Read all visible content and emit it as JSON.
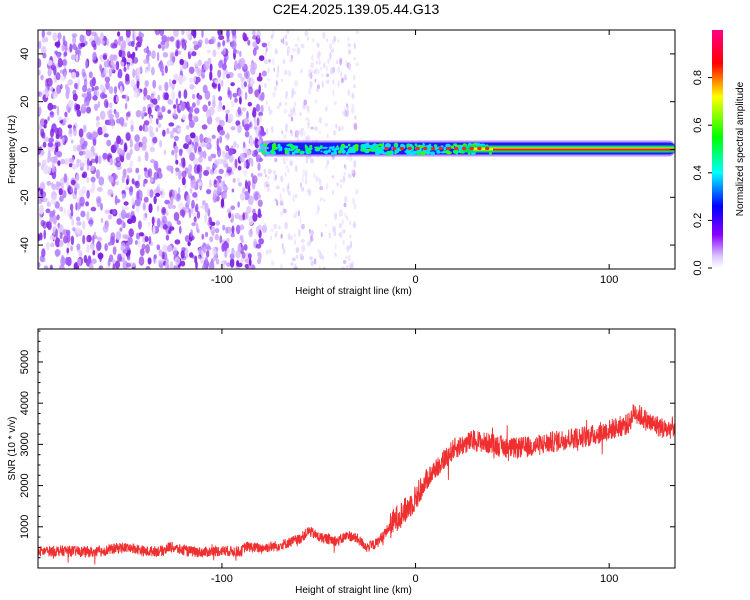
{
  "title": "C2E4.2025.139.05.44.G13",
  "chart_data": [
    {
      "type": "heatmap",
      "xlabel": "Height of straight line (km)",
      "ylabel": "Frequency (Hz)",
      "xlim": [
        -195,
        134
      ],
      "ylim": [
        -50,
        50
      ],
      "xticks": [
        -100,
        0,
        100
      ],
      "yticks": [
        -40,
        -20,
        0,
        20,
        40
      ],
      "colorbar": {
        "label": "Normalized spectral amplitude",
        "range": [
          0.0,
          1.0
        ],
        "ticks": [
          0.0,
          0.2,
          0.4,
          0.6,
          0.8
        ],
        "tick_labels": [
          "0.0",
          "0.2",
          "0.4",
          "0.6",
          "0.8"
        ],
        "colors": [
          "#ffffff",
          "#8800ff",
          "#0000ff",
          "#00ffff",
          "#00ff00",
          "#ffff00",
          "#ff0000",
          "#ff0088"
        ]
      },
      "features": {
        "noise_region_x": [
          -195,
          -78
        ],
        "sparse_noise_x": [
          -78,
          -30
        ],
        "signal_start_x": -80,
        "signal_frequency": 0,
        "bright_trace_from_x": 40
      }
    },
    {
      "type": "line",
      "xlabel": "Height of straight line (km)",
      "ylabel": "SNR (10 * v/v)",
      "xlim": [
        -195,
        134
      ],
      "ylim": [
        0,
        5800
      ],
      "xticks": [
        -100,
        0,
        100
      ],
      "yticks": [
        1000,
        2000,
        3000,
        4000,
        5000
      ],
      "color": "#f03030",
      "x": [
        -195,
        -180,
        -165,
        -152,
        -145,
        -140,
        -130,
        -127,
        -120,
        -110,
        -100,
        -90,
        -88,
        -80,
        -70,
        -60,
        -55,
        -50,
        -40,
        -35,
        -30,
        -25,
        -20,
        -15,
        -10,
        -5,
        0,
        5,
        10,
        20,
        30,
        40,
        50,
        60,
        70,
        80,
        90,
        100,
        110,
        113,
        116,
        120,
        130,
        134
      ],
      "values": [
        400,
        420,
        380,
        500,
        480,
        400,
        420,
        520,
        420,
        380,
        420,
        400,
        520,
        480,
        550,
        700,
        900,
        750,
        650,
        800,
        700,
        500,
        600,
        900,
        1200,
        1400,
        1700,
        2100,
        2400,
        2900,
        3100,
        3000,
        2900,
        2950,
        3050,
        3150,
        3200,
        3350,
        3500,
        3800,
        3700,
        3550,
        3350,
        3450
      ]
    }
  ]
}
